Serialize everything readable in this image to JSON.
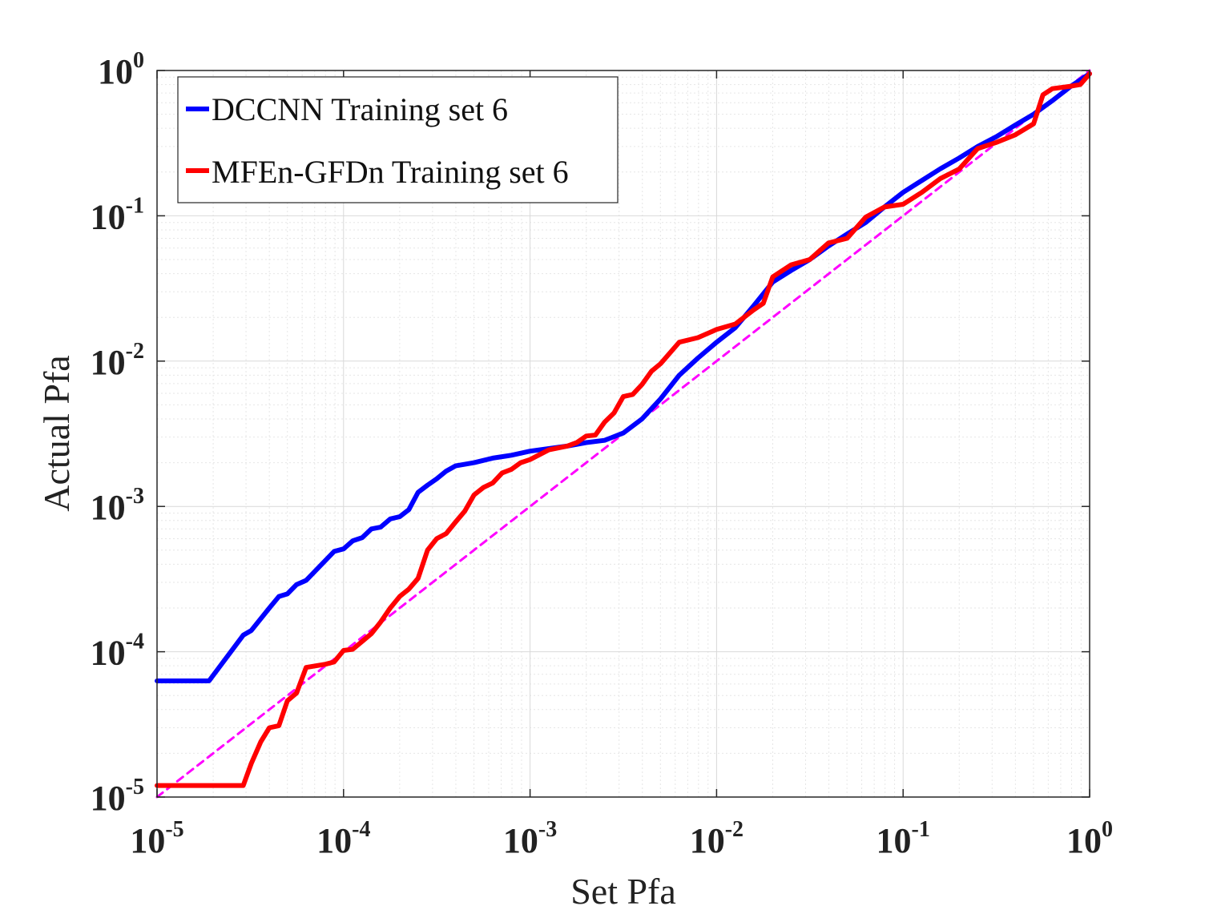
{
  "chart_data": {
    "type": "line",
    "title": "",
    "xlabel": "Set Pfa",
    "ylabel": "Actual Pfa",
    "xscale": "log",
    "yscale": "log",
    "xlim": [
      1e-05,
      1
    ],
    "ylim": [
      1e-05,
      1
    ],
    "grid": true,
    "minor_grid": true,
    "legend_position": "top-left",
    "x_ticks": [
      {
        "value": 1e-05,
        "base": "10",
        "exp": "-5"
      },
      {
        "value": 0.0001,
        "base": "10",
        "exp": "-4"
      },
      {
        "value": 0.001,
        "base": "10",
        "exp": "-3"
      },
      {
        "value": 0.01,
        "base": "10",
        "exp": "-2"
      },
      {
        "value": 0.1,
        "base": "10",
        "exp": "-1"
      },
      {
        "value": 1,
        "base": "10",
        "exp": "0"
      }
    ],
    "y_ticks": [
      {
        "value": 1e-05,
        "base": "10",
        "exp": "-5"
      },
      {
        "value": 0.0001,
        "base": "10",
        "exp": "-4"
      },
      {
        "value": 0.001,
        "base": "10",
        "exp": "-3"
      },
      {
        "value": 0.01,
        "base": "10",
        "exp": "-2"
      },
      {
        "value": 0.1,
        "base": "10",
        "exp": "-1"
      },
      {
        "value": 1,
        "base": "10",
        "exp": "0"
      }
    ],
    "series": [
      {
        "name": "DCCNN Training set 6",
        "color": "#0000ff",
        "style": "solid",
        "x": [
          1e-05,
          1.9e-05,
          2.9e-05,
          3.2e-05,
          4e-05,
          4.5e-05,
          5e-05,
          5.6e-05,
          6.3e-05,
          8.9e-05,
          0.0001,
          0.000112,
          0.000126,
          0.000141,
          0.000158,
          0.000178,
          0.0002,
          0.000224,
          0.000251,
          0.000282,
          0.000316,
          0.000355,
          0.000398,
          0.000447,
          0.000501,
          0.000631,
          0.000794,
          0.001,
          0.00126,
          0.00158,
          0.002,
          0.00251,
          0.00316,
          0.00398,
          0.00501,
          0.00631,
          0.00794,
          0.01,
          0.0126,
          0.0158,
          0.02,
          0.0251,
          0.0316,
          0.0398,
          0.0501,
          0.0631,
          0.0794,
          0.1,
          0.126,
          0.158,
          0.2,
          0.251,
          0.316,
          0.398,
          0.501,
          0.631,
          0.794,
          1
        ],
        "y": [
          6.3e-05,
          6.3e-05,
          0.00013,
          0.00014,
          0.0002,
          0.00024,
          0.00025,
          0.00029,
          0.00031,
          0.00049,
          0.00051,
          0.00058,
          0.00061,
          0.0007,
          0.00072,
          0.00082,
          0.00085,
          0.00095,
          0.00125,
          0.0014,
          0.00155,
          0.00175,
          0.0019,
          0.00195,
          0.002,
          0.00215,
          0.00225,
          0.0024,
          0.0025,
          0.0026,
          0.00275,
          0.00285,
          0.0032,
          0.004,
          0.0055,
          0.008,
          0.0105,
          0.0135,
          0.017,
          0.024,
          0.035,
          0.042,
          0.05,
          0.062,
          0.075,
          0.09,
          0.115,
          0.145,
          0.175,
          0.21,
          0.25,
          0.3,
          0.35,
          0.42,
          0.5,
          0.62,
          0.78,
          0.95
        ]
      },
      {
        "name": "MFEn-GFDn Training set 6",
        "color": "#ff0000",
        "style": "solid",
        "x": [
          1e-05,
          2.9e-05,
          3.2e-05,
          3.6e-05,
          4e-05,
          4.5e-05,
          5e-05,
          5.6e-05,
          6.3e-05,
          8e-05,
          8.9e-05,
          0.0001,
          0.000112,
          0.000126,
          0.000141,
          0.000158,
          0.000178,
          0.0002,
          0.000224,
          0.000251,
          0.000282,
          0.000316,
          0.000355,
          0.000398,
          0.000447,
          0.000501,
          0.000562,
          0.000631,
          0.000708,
          0.000794,
          0.000891,
          0.001,
          0.00126,
          0.00158,
          0.00178,
          0.002,
          0.00224,
          0.00251,
          0.00282,
          0.00316,
          0.00355,
          0.00398,
          0.00447,
          0.00501,
          0.00631,
          0.00794,
          0.01,
          0.0126,
          0.0158,
          0.0178,
          0.02,
          0.0251,
          0.0316,
          0.0398,
          0.0501,
          0.0631,
          0.0794,
          0.1,
          0.126,
          0.158,
          0.2,
          0.251,
          0.316,
          0.398,
          0.501,
          0.562,
          0.631,
          0.794,
          0.891,
          1
        ],
        "y": [
          1.2e-05,
          1.2e-05,
          1.7e-05,
          2.4e-05,
          3e-05,
          3.1e-05,
          4.6e-05,
          5.2e-05,
          7.8e-05,
          8.2e-05,
          8.5e-05,
          0.000102,
          0.000104,
          0.000118,
          0.000133,
          0.00016,
          0.0002,
          0.00024,
          0.00027,
          0.00032,
          0.0005,
          0.0006,
          0.00065,
          0.00078,
          0.00093,
          0.0012,
          0.00135,
          0.00145,
          0.0017,
          0.0018,
          0.002,
          0.0021,
          0.00245,
          0.0026,
          0.00275,
          0.00305,
          0.0031,
          0.0038,
          0.0044,
          0.0057,
          0.0059,
          0.0069,
          0.0085,
          0.0096,
          0.0135,
          0.0145,
          0.0165,
          0.018,
          0.0225,
          0.025,
          0.038,
          0.046,
          0.05,
          0.065,
          0.07,
          0.098,
          0.115,
          0.12,
          0.145,
          0.18,
          0.21,
          0.29,
          0.32,
          0.36,
          0.43,
          0.68,
          0.75,
          0.78,
          0.8,
          0.95
        ]
      },
      {
        "name": "",
        "color": "#ff00ff",
        "style": "dashed",
        "x": [
          1e-05,
          1
        ],
        "y": [
          1e-05,
          1
        ]
      }
    ]
  }
}
